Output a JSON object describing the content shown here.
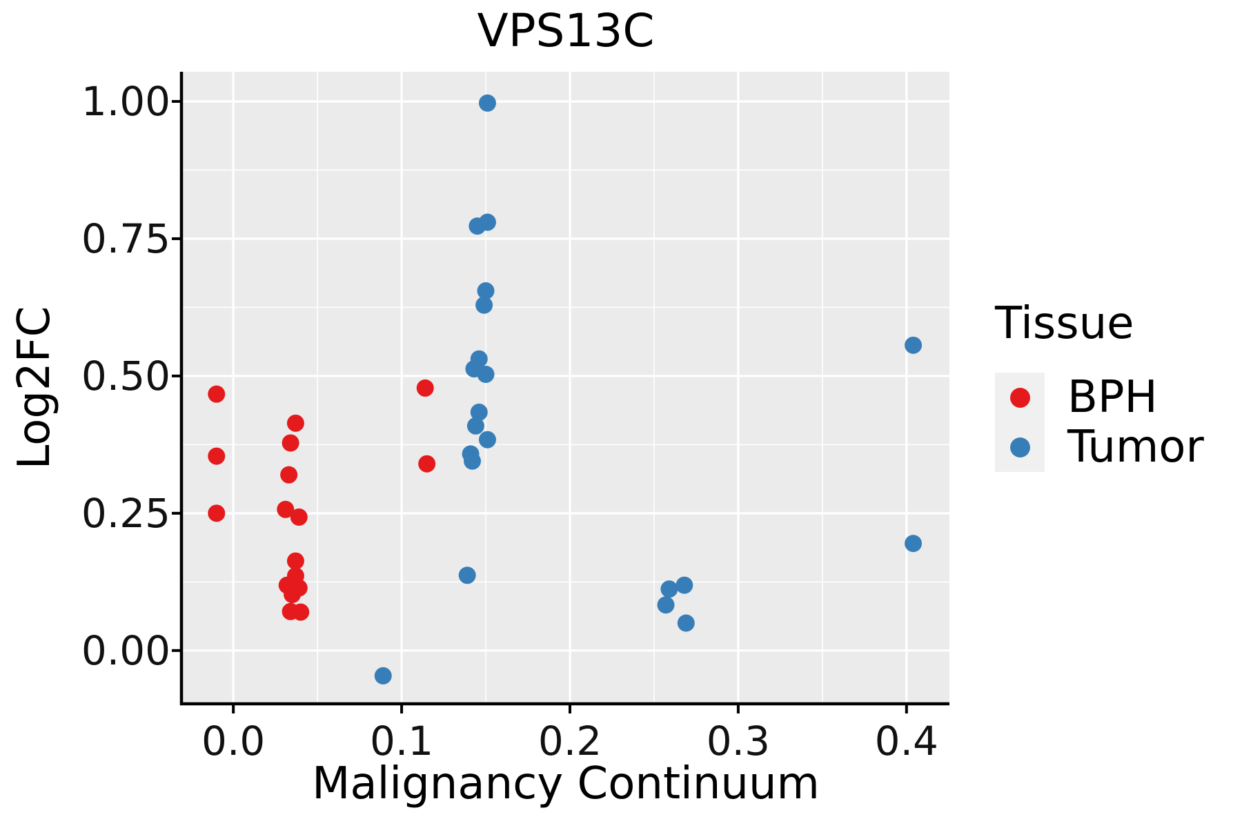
{
  "title": "VPS13C",
  "legend": {
    "title": "Tissue",
    "entries": [
      {
        "label": "BPH",
        "color": "#e41a1c"
      },
      {
        "label": "Tumor",
        "color": "#377eb8"
      }
    ]
  },
  "chart_data": {
    "type": "scatter",
    "title": "VPS13C",
    "xlabel": "Malignancy Continuum",
    "ylabel": "Log2FC",
    "xlim": [
      -0.03,
      0.4255
    ],
    "ylim": [
      -0.097,
      1.054
    ],
    "x_ticks": {
      "values": [
        0.0,
        0.1,
        0.2,
        0.3,
        0.4
      ],
      "labels": [
        "0.0",
        "0.1",
        "0.2",
        "0.3",
        "0.4"
      ],
      "minor": [
        0.05,
        0.15,
        0.25,
        0.35
      ]
    },
    "y_ticks": {
      "values": [
        0.0,
        0.25,
        0.5,
        0.75,
        1.0
      ],
      "labels": [
        "0.00",
        "0.25",
        "0.50",
        "0.75",
        "1.00"
      ],
      "minor": [
        0.125,
        0.375,
        0.625,
        0.875
      ]
    },
    "grid": {
      "on": true,
      "major_color": "#ffffff",
      "minor_color": "#ffffff"
    },
    "panel_background": "#ebebeb",
    "axis_color": "#000000",
    "legend_position": "right",
    "point_radius_px": 12.5,
    "series": [
      {
        "name": "BPH",
        "color": "#e41a1c",
        "points": [
          [
            -0.01,
            0.467
          ],
          [
            -0.01,
            0.354
          ],
          [
            -0.01,
            0.25
          ],
          [
            0.037,
            0.414
          ],
          [
            0.034,
            0.378
          ],
          [
            0.033,
            0.32
          ],
          [
            0.031,
            0.257
          ],
          [
            0.039,
            0.243
          ],
          [
            0.037,
            0.163
          ],
          [
            0.037,
            0.136
          ],
          [
            0.032,
            0.119
          ],
          [
            0.039,
            0.114
          ],
          [
            0.035,
            0.102
          ],
          [
            0.034,
            0.071
          ],
          [
            0.04,
            0.07
          ],
          [
            0.114,
            0.478
          ],
          [
            0.115,
            0.34
          ]
        ]
      },
      {
        "name": "Tumor",
        "color": "#377eb8",
        "points": [
          [
            0.151,
            0.997
          ],
          [
            0.145,
            0.773
          ],
          [
            0.151,
            0.78
          ],
          [
            0.15,
            0.655
          ],
          [
            0.149,
            0.629
          ],
          [
            0.146,
            0.531
          ],
          [
            0.143,
            0.513
          ],
          [
            0.15,
            0.503
          ],
          [
            0.146,
            0.434
          ],
          [
            0.144,
            0.409
          ],
          [
            0.151,
            0.384
          ],
          [
            0.141,
            0.358
          ],
          [
            0.142,
            0.345
          ],
          [
            0.139,
            0.137
          ],
          [
            0.089,
            -0.046
          ],
          [
            0.259,
            0.112
          ],
          [
            0.268,
            0.119
          ],
          [
            0.257,
            0.083
          ],
          [
            0.269,
            0.05
          ],
          [
            0.404,
            0.556
          ],
          [
            0.404,
            0.195
          ]
        ]
      }
    ]
  }
}
